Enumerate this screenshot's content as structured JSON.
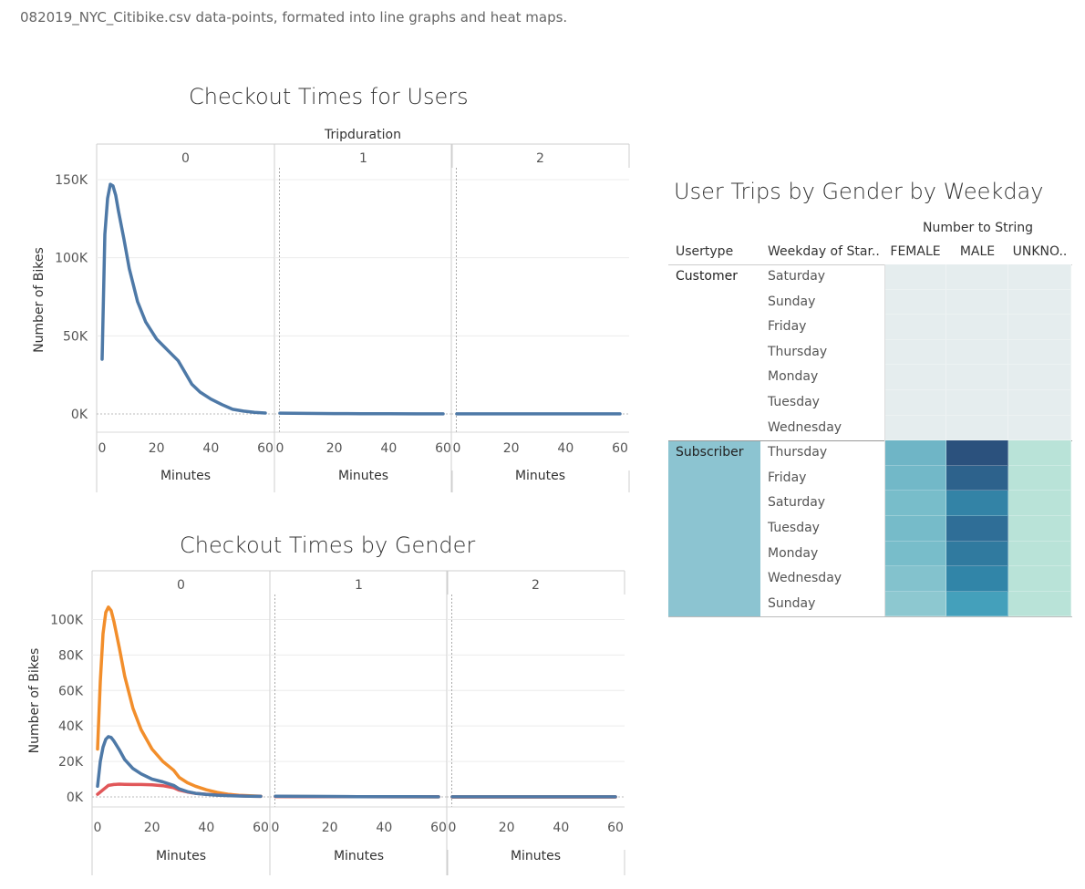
{
  "page": {
    "subtitle": "082019_NYC_Citibike.csv data-points, formated into line graphs and heat maps."
  },
  "chart_data": [
    {
      "type": "line",
      "title": "Checkout Times for Users",
      "column_header": "Tripduration",
      "panels": [
        "0",
        "1",
        "2"
      ],
      "xlabel": "Minutes",
      "ylabel": "Number of Bikes",
      "xlim": [
        0,
        60
      ],
      "ylim": [
        0,
        150000
      ],
      "x_ticks": [
        "0",
        "20",
        "40",
        "60"
      ],
      "y_ticks": [
        {
          "v": 0,
          "l": "0K"
        },
        {
          "v": 50000,
          "l": "50K"
        },
        {
          "v": 100000,
          "l": "100K"
        },
        {
          "v": 150000,
          "l": "150K"
        }
      ],
      "grid": true,
      "series": [
        {
          "color": "#4e79a7",
          "panel_values": [
            {
              "x": [
                0,
                1,
                2,
                3,
                4,
                5,
                6,
                8,
                10,
                13,
                16,
                20,
                24,
                28,
                30,
                33,
                36,
                40,
                44,
                48,
                52,
                56,
                60
              ],
              "y": [
                35000,
                115000,
                138000,
                147000,
                146000,
                140000,
                130000,
                112000,
                93000,
                72000,
                59000,
                48000,
                41000,
                34000,
                28000,
                19000,
                14000,
                9500,
                6000,
                3000,
                1800,
                1000,
                600
              ]
            },
            {
              "x": [
                0,
                10,
                20,
                30,
                40,
                50,
                60
              ],
              "y": [
                500,
                350,
                250,
                150,
                100,
                80,
                60
              ]
            },
            {
              "x": [
                0,
                10,
                20,
                30,
                40,
                50,
                60
              ],
              "y": [
                30,
                30,
                30,
                30,
                30,
                30,
                30
              ]
            }
          ]
        }
      ]
    },
    {
      "type": "line",
      "title": "Checkout Times by Gender",
      "panels": [
        "0",
        "1",
        "2"
      ],
      "xlabel": "Minutes",
      "ylabel": "Number of Bikes",
      "xlim": [
        0,
        60
      ],
      "ylim": [
        0,
        110000
      ],
      "x_ticks": [
        "0",
        "20",
        "40",
        "60"
      ],
      "y_ticks": [
        {
          "v": 0,
          "l": "0K"
        },
        {
          "v": 20000,
          "l": "20K"
        },
        {
          "v": 40000,
          "l": "40K"
        },
        {
          "v": 60000,
          "l": "60K"
        },
        {
          "v": 80000,
          "l": "80K"
        },
        {
          "v": 100000,
          "l": "100K"
        }
      ],
      "grid": true,
      "series": [
        {
          "color": "#f28e2b",
          "panel_values": [
            {
              "x": [
                0,
                1,
                2,
                3,
                4,
                5,
                6,
                8,
                10,
                13,
                16,
                20,
                24,
                28,
                30,
                33,
                36,
                40,
                44,
                48,
                52,
                56,
                60
              ],
              "y": [
                27000,
                65000,
                92000,
                104000,
                107000,
                105000,
                99000,
                84000,
                68000,
                50000,
                38000,
                27000,
                20000,
                15000,
                11000,
                8000,
                6000,
                4000,
                2500,
                1500,
                900,
                600,
                400
              ]
            },
            {
              "x": [
                0,
                10,
                20,
                30,
                40,
                50,
                60
              ],
              "y": [
                300,
                200,
                150,
                100,
                80,
                60,
                50
              ]
            },
            {
              "x": [
                0,
                10,
                20,
                30,
                40,
                50,
                60
              ],
              "y": [
                20,
                20,
                20,
                20,
                20,
                20,
                20
              ]
            }
          ]
        },
        {
          "color": "#e15759",
          "panel_values": [
            {
              "x": [
                0,
                2,
                4,
                6,
                8,
                10,
                13,
                16,
                20,
                24,
                28,
                30,
                33,
                36,
                40,
                44,
                48,
                52,
                56,
                60
              ],
              "y": [
                1500,
                4000,
                6500,
                7000,
                7200,
                7100,
                7000,
                7000,
                6800,
                6300,
                5200,
                3800,
                2800,
                2000,
                1500,
                1100,
                800,
                600,
                400,
                300
              ]
            },
            {
              "x": [
                0,
                10,
                20,
                30,
                40,
                50,
                60
              ],
              "y": [
                200,
                150,
                100,
                80,
                60,
                50,
                40
              ]
            },
            {
              "x": [
                0,
                10,
                20,
                30,
                40,
                50,
                60
              ],
              "y": [
                20,
                20,
                20,
                20,
                20,
                20,
                20
              ]
            }
          ]
        },
        {
          "color": "#4e79a7",
          "panel_values": [
            {
              "x": [
                0,
                1,
                2,
                3,
                4,
                5,
                6,
                8,
                10,
                13,
                16,
                20,
                24,
                28,
                30,
                33,
                36,
                40,
                44,
                48,
                52,
                56,
                60
              ],
              "y": [
                6000,
                20000,
                28000,
                32500,
                34000,
                33500,
                31500,
                26500,
                21000,
                16000,
                13000,
                10000,
                8500,
                6500,
                4500,
                3000,
                2000,
                1400,
                1000,
                700,
                500,
                400,
                300
              ]
            },
            {
              "x": [
                0,
                10,
                20,
                30,
                40,
                50,
                60
              ],
              "y": [
                400,
                300,
                250,
                150,
                100,
                80,
                60
              ]
            },
            {
              "x": [
                0,
                10,
                20,
                30,
                40,
                50,
                60
              ],
              "y": [
                30,
                30,
                30,
                30,
                30,
                30,
                30
              ]
            }
          ]
        }
      ]
    },
    {
      "type": "heatmap",
      "title": "User Trips by Gender by Weekday",
      "column_group_header": "Number to String",
      "row_headers": [
        "Usertype",
        "Weekday of Star.."
      ],
      "columns": [
        "FEMALE",
        "MALE",
        "UNKNO.."
      ],
      "groups": [
        {
          "usertype": "Customer",
          "rows": [
            {
              "day": "Saturday",
              "colors": [
                "#e5edee",
                "#e5edee",
                "#e5edee"
              ]
            },
            {
              "day": "Sunday",
              "colors": [
                "#e5edee",
                "#e5edee",
                "#e5edee"
              ]
            },
            {
              "day": "Friday",
              "colors": [
                "#e5edee",
                "#e5edee",
                "#e5edee"
              ]
            },
            {
              "day": "Thursday",
              "colors": [
                "#e5edee",
                "#e5edee",
                "#e5edee"
              ]
            },
            {
              "day": "Monday",
              "colors": [
                "#e5edee",
                "#e5edee",
                "#e5edee"
              ]
            },
            {
              "day": "Tuesday",
              "colors": [
                "#e5edee",
                "#e5edee",
                "#e5edee"
              ]
            },
            {
              "day": "Wednesday",
              "colors": [
                "#e5edee",
                "#e5edee",
                "#e5edee"
              ]
            }
          ]
        },
        {
          "usertype": "Subscriber",
          "rows": [
            {
              "day": "Thursday",
              "colors": [
                "#6fb5c6",
                "#2b517d",
                "#b9e3d8"
              ]
            },
            {
              "day": "Friday",
              "colors": [
                "#72b8c8",
                "#2d628c",
                "#b9e3d8"
              ]
            },
            {
              "day": "Saturday",
              "colors": [
                "#78bdca",
                "#3383a6",
                "#b9e3d8"
              ]
            },
            {
              "day": "Tuesday",
              "colors": [
                "#76bbc9",
                "#2f6e97",
                "#b9e3d8"
              ]
            },
            {
              "day": "Monday",
              "colors": [
                "#78bdca",
                "#307a9f",
                "#b9e3d8"
              ]
            },
            {
              "day": "Wednesday",
              "colors": [
                "#83c2cd",
                "#3185a8",
                "#b9e3d8"
              ]
            },
            {
              "day": "Sunday",
              "colors": [
                "#8dc8d0",
                "#44a0bb",
                "#b9e3d8"
              ]
            }
          ]
        }
      ],
      "selected_group_color": "#8cc4d1",
      "group_label_color": "#222222"
    }
  ]
}
